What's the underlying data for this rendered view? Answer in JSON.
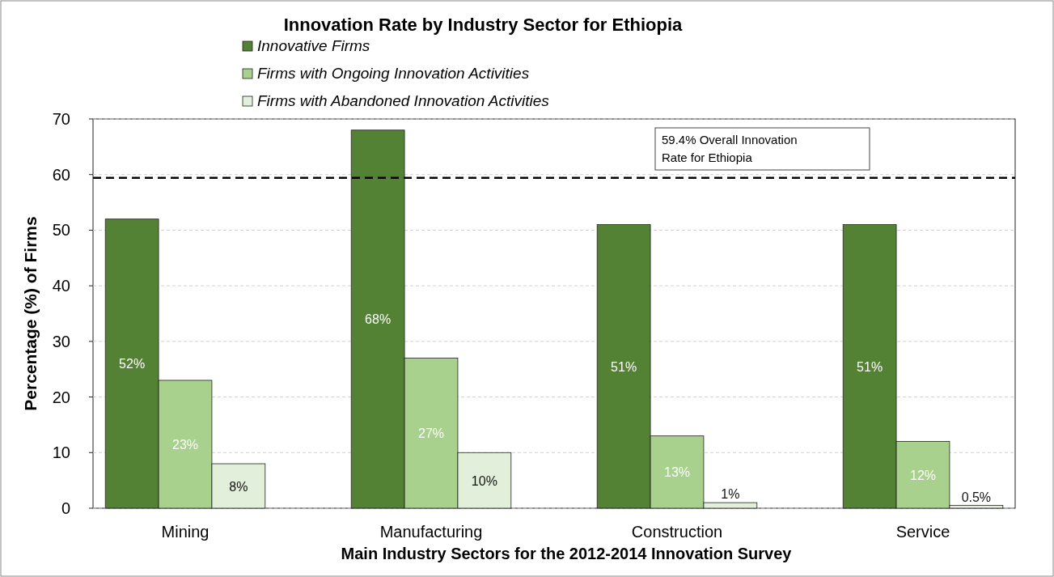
{
  "chart_data": {
    "type": "bar",
    "title": "Innovation Rate by Industry Sector for Ethiopia",
    "xlabel": "Main Industry Sectors for the 2012-2014 Innovation Survey",
    "ylabel": "Percentage (%) of Firms",
    "categories": [
      "Mining",
      "Manufacturing",
      "Construction",
      "Service"
    ],
    "series": [
      {
        "name": "Innovative Firms",
        "color": "#548235",
        "values": [
          52,
          68,
          51,
          51
        ],
        "value_labels": [
          "52%",
          "68%",
          "51%",
          "51%"
        ]
      },
      {
        "name": "Firms with Ongoing Innovation Activities",
        "color": "#a9d18e",
        "values": [
          23,
          27,
          13,
          12
        ],
        "value_labels": [
          "23%",
          "27%",
          "13%",
          "12%"
        ]
      },
      {
        "name": "Firms with Abandoned Innovation Activities",
        "color": "#e2efda",
        "values": [
          8,
          10,
          1,
          0.5
        ],
        "value_labels": [
          "8%",
          "10%",
          "1%",
          "0.5%"
        ]
      }
    ],
    "ylim": [
      0,
      70
    ],
    "yticks": [
      0,
      10,
      20,
      30,
      40,
      50,
      60,
      70
    ],
    "grid": "y",
    "legend": "top left",
    "ref_lines": [
      {
        "axis": "y",
        "value": 59.4,
        "label": "59.4% Overall Innovation Rate for Ethiopia",
        "color": "#000000",
        "line_style": "dashed"
      }
    ]
  }
}
